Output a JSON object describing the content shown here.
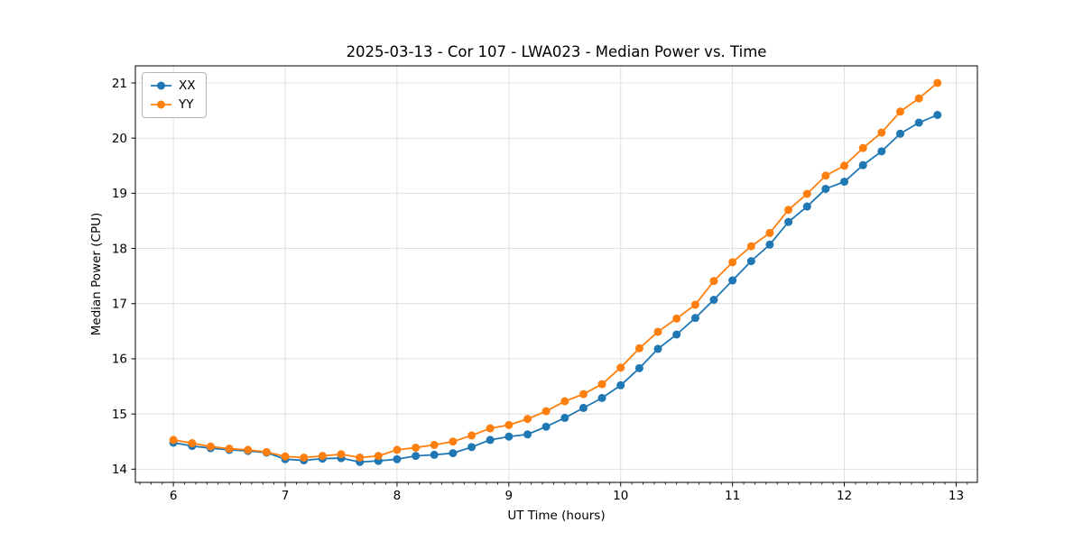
{
  "chart_data": {
    "type": "line",
    "title": "2025-03-13 - Cor 107 - LWA023 - Median Power vs. Time",
    "xlabel": "UT Time (hours)",
    "ylabel": "Median Power (CPU)",
    "xlim": [
      5.66,
      13.19
    ],
    "ylim": [
      13.76,
      21.31
    ],
    "x_ticks": [
      6,
      7,
      8,
      9,
      10,
      11,
      12,
      13
    ],
    "y_ticks": [
      14,
      15,
      16,
      17,
      18,
      19,
      20,
      21
    ],
    "x_minor_tick_step": 0.1,
    "grid": true,
    "legend_position": "upper left",
    "x": [
      6.0,
      6.167,
      6.333,
      6.5,
      6.667,
      6.833,
      7.0,
      7.167,
      7.333,
      7.5,
      7.667,
      7.833,
      8.0,
      8.167,
      8.333,
      8.5,
      8.667,
      8.833,
      9.0,
      9.167,
      9.333,
      9.5,
      9.667,
      9.833,
      10.0,
      10.167,
      10.333,
      10.5,
      10.667,
      10.833,
      11.0,
      11.167,
      11.333,
      11.5,
      11.667,
      11.833,
      12.0,
      12.167,
      12.333,
      12.5,
      12.667,
      12.833
    ],
    "series": [
      {
        "name": "XX",
        "color": "#1f77b4",
        "values": [
          14.48,
          14.42,
          14.38,
          14.35,
          14.33,
          14.3,
          14.18,
          14.16,
          14.19,
          14.2,
          14.13,
          14.15,
          14.18,
          14.24,
          14.26,
          14.29,
          14.4,
          14.53,
          14.59,
          14.63,
          14.77,
          14.93,
          15.11,
          15.29,
          15.52,
          15.83,
          16.18,
          16.44,
          16.74,
          17.07,
          17.42,
          17.77,
          18.07,
          18.48,
          18.76,
          19.08,
          19.21,
          19.51,
          19.76,
          20.08,
          20.28,
          20.42
        ]
      },
      {
        "name": "YY",
        "color": "#ff7f0e",
        "values": [
          14.53,
          14.47,
          14.41,
          14.37,
          14.35,
          14.31,
          14.23,
          14.21,
          14.24,
          14.27,
          14.21,
          14.24,
          14.35,
          14.39,
          14.44,
          14.5,
          14.61,
          14.74,
          14.8,
          14.91,
          15.05,
          15.23,
          15.36,
          15.54,
          15.84,
          16.19,
          16.49,
          16.73,
          16.98,
          17.41,
          17.75,
          18.04,
          18.28,
          18.7,
          18.99,
          19.32,
          19.5,
          19.82,
          20.1,
          20.48,
          20.72,
          21.0
        ]
      }
    ]
  },
  "colors": {
    "background": "#ffffff",
    "grid": "#dcdcdc",
    "spine": "#000000",
    "series_xx": "#1f77b4",
    "series_yy": "#ff7f0e"
  }
}
